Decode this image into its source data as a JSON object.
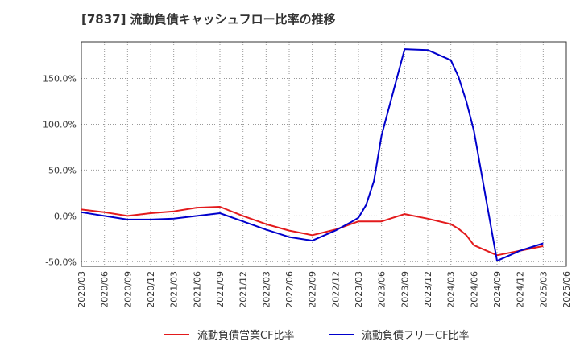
{
  "chart_data": {
    "type": "line",
    "title": "[7837]  流動負債キャッシュフロー比率の推移",
    "xlabel": "",
    "ylabel": "",
    "ylim": [
      -55,
      190
    ],
    "yticks": [
      -50,
      0,
      50,
      100,
      150
    ],
    "ytick_labels": [
      "-50.0%",
      "0.0%",
      "50.0%",
      "100.0%",
      "150.0%"
    ],
    "x": [
      "2020/03",
      "2020/06",
      "2020/09",
      "2020/12",
      "2021/03",
      "2021/06",
      "2021/09",
      "2021/12",
      "2022/03",
      "2022/06",
      "2022/09",
      "2022/12",
      "2023/03",
      "2023/06",
      "2023/09",
      "2023/12",
      "2024/03",
      "2024/06",
      "2024/09",
      "2024/12",
      "2025/03",
      "2025/06"
    ],
    "grid": true,
    "legend_position": "bottom",
    "series": [
      {
        "name": "流動負債営業CF比率",
        "color": "#e31a1c",
        "points": [
          [
            0,
            7
          ],
          [
            1,
            4
          ],
          [
            2,
            0
          ],
          [
            3,
            3
          ],
          [
            4,
            5
          ],
          [
            5,
            9
          ],
          [
            6,
            10
          ],
          [
            7,
            0
          ],
          [
            8,
            -9
          ],
          [
            9,
            -16
          ],
          [
            10,
            -21
          ],
          [
            11,
            -15
          ],
          [
            11.33,
            -12
          ],
          [
            11.67,
            -9
          ],
          [
            12,
            -6
          ],
          [
            13,
            -6
          ],
          [
            14,
            2
          ],
          [
            15,
            -3
          ],
          [
            16,
            -9
          ],
          [
            16.33,
            -14
          ],
          [
            16.67,
            -21
          ],
          [
            17,
            -32
          ],
          [
            18,
            -43
          ],
          [
            19,
            -38
          ],
          [
            20,
            -33
          ]
        ]
      },
      {
        "name": "流動負債フリーCF比率",
        "color": "#0000cc",
        "points": [
          [
            0,
            4
          ],
          [
            1,
            0
          ],
          [
            2,
            -4
          ],
          [
            3,
            -4
          ],
          [
            4,
            -3
          ],
          [
            5,
            0
          ],
          [
            6,
            3
          ],
          [
            7,
            -6
          ],
          [
            8,
            -15
          ],
          [
            9,
            -23
          ],
          [
            10,
            -27
          ],
          [
            11,
            -16
          ],
          [
            11.67,
            -7
          ],
          [
            12,
            -2
          ],
          [
            12.33,
            12
          ],
          [
            12.67,
            38
          ],
          [
            13,
            88
          ],
          [
            14,
            182
          ],
          [
            15,
            181
          ],
          [
            16,
            170
          ],
          [
            16.33,
            152
          ],
          [
            16.67,
            125
          ],
          [
            17,
            93
          ],
          [
            18,
            -49
          ],
          [
            19,
            -38
          ],
          [
            20,
            -30
          ]
        ]
      }
    ]
  }
}
